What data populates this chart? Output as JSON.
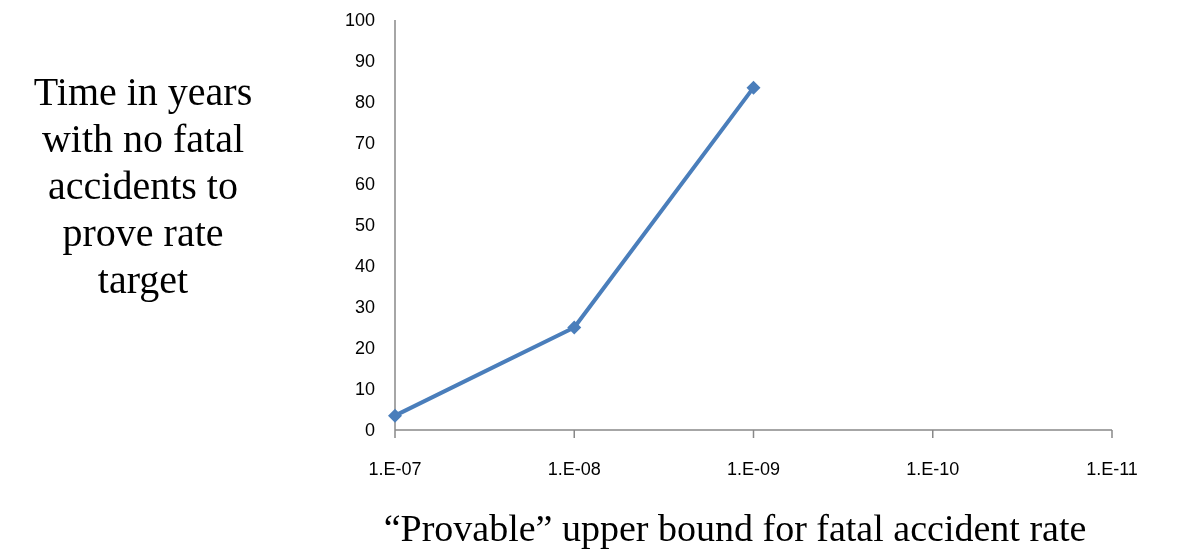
{
  "chart_data": {
    "type": "line",
    "xlabel": "“Provable” upper bound for fatal accident rate",
    "ylabel": "Time in years with no fatal accidents to prove rate target",
    "categories": [
      "1.E-07",
      "1.E-08",
      "1.E-09",
      "1.E-10",
      "1.E-11"
    ],
    "series": [
      {
        "color": "#4a7ebb",
        "values": [
          3.5,
          25,
          83.5,
          null,
          null
        ]
      }
    ],
    "ylim": [
      0,
      100
    ],
    "yticks": [
      0,
      10,
      20,
      30,
      40,
      50,
      60,
      70,
      80,
      90,
      100
    ],
    "marker": "diamond",
    "line_style": "solid",
    "grid": false
  }
}
